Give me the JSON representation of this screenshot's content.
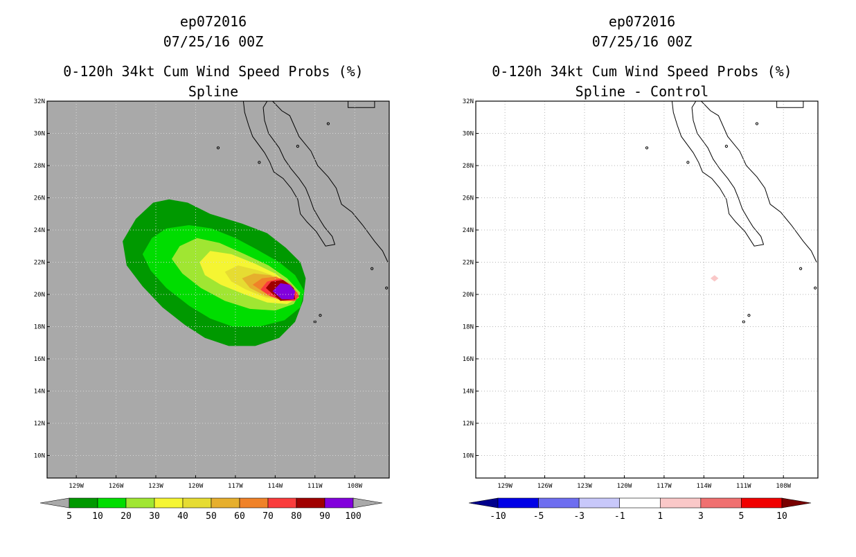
{
  "chart_data": [
    {
      "type": "heatmap",
      "storm_id": "ep072016",
      "date": "07/25/16 00Z",
      "title": "0-120h 34kt Cum Wind Speed Probs (%)",
      "subtitle": "Spline",
      "xlabel": "",
      "ylabel": "",
      "xlim": [
        -131.2,
        -105.4
      ],
      "ylim": [
        8.6,
        32
      ],
      "grid": true,
      "x_ticks": [
        -129,
        -126,
        -123,
        -120,
        -117,
        -114,
        -111,
        -108
      ],
      "x_tick_labels": [
        "129W",
        "126W",
        "123W",
        "120W",
        "117W",
        "114W",
        "111W",
        "108W"
      ],
      "y_ticks": [
        10,
        12,
        14,
        16,
        18,
        20,
        22,
        24,
        26,
        28,
        30,
        32
      ],
      "y_tick_labels": [
        "10N",
        "12N",
        "14N",
        "16N",
        "18N",
        "20N",
        "22N",
        "24N",
        "26N",
        "28N",
        "30N",
        "32N"
      ],
      "background_color": "#a9a9a9",
      "colorbar": {
        "labels": [
          "5",
          "10",
          "20",
          "30",
          "40",
          "50",
          "60",
          "70",
          "80",
          "90",
          "100"
        ],
        "colors": [
          "#009900",
          "#00dd00",
          "#a0e632",
          "#f5f532",
          "#e6dc32",
          "#e6af2d",
          "#f08228",
          "#fa3c3c",
          "#a00000",
          "#8200dc"
        ],
        "under_color": "#a9a9a9",
        "over_color": "#a9a9a9"
      },
      "contours": [
        {
          "level": 5,
          "color": "#009900",
          "points": [
            [
              -125.5,
              23.3
            ],
            [
              -124.5,
              24.7
            ],
            [
              -123.2,
              25.7
            ],
            [
              -122,
              25.9
            ],
            [
              -120.6,
              25.7
            ],
            [
              -118.9,
              25
            ],
            [
              -116.5,
              24.4
            ],
            [
              -114.6,
              23.8
            ],
            [
              -113.2,
              22.9
            ],
            [
              -112.1,
              22
            ],
            [
              -111.7,
              21
            ],
            [
              -111.9,
              19.6
            ],
            [
              -112.5,
              18.3
            ],
            [
              -113.7,
              17.3
            ],
            [
              -115.5,
              16.8
            ],
            [
              -117.5,
              16.8
            ],
            [
              -119.3,
              17.3
            ],
            [
              -120.8,
              18.1
            ],
            [
              -122.5,
              19.2
            ],
            [
              -124,
              20.5
            ],
            [
              -125.2,
              21.8
            ]
          ]
        },
        {
          "level": 10,
          "color": "#00dd00",
          "points": [
            [
              -124,
              22.5
            ],
            [
              -123.3,
              23.5
            ],
            [
              -122.2,
              24.1
            ],
            [
              -120.5,
              24.3
            ],
            [
              -118.8,
              24.1
            ],
            [
              -117,
              23.5
            ],
            [
              -115.4,
              22.8
            ],
            [
              -113.7,
              22
            ],
            [
              -112.5,
              21.2
            ],
            [
              -111.8,
              20.2
            ],
            [
              -112.1,
              19.2
            ],
            [
              -113.3,
              18.4
            ],
            [
              -115.2,
              18
            ],
            [
              -117.2,
              18
            ],
            [
              -118.9,
              18.5
            ],
            [
              -120.5,
              19.3
            ],
            [
              -122.2,
              20.4
            ],
            [
              -123.4,
              21.5
            ]
          ]
        },
        {
          "level": 20,
          "color": "#a0e632",
          "points": [
            [
              -121.8,
              22.2
            ],
            [
              -121.2,
              23
            ],
            [
              -119.9,
              23.5
            ],
            [
              -118.2,
              23.2
            ],
            [
              -116.3,
              22.5
            ],
            [
              -114.5,
              21.8
            ],
            [
              -113.1,
              21
            ],
            [
              -112.1,
              20.1
            ],
            [
              -112.6,
              19.4
            ],
            [
              -114,
              19
            ],
            [
              -115.9,
              19.1
            ],
            [
              -117.8,
              19.6
            ],
            [
              -119.6,
              20.4
            ],
            [
              -121,
              21.3
            ]
          ]
        },
        {
          "level": 30,
          "color": "#f5f532",
          "points": [
            [
              -119.7,
              22
            ],
            [
              -118.9,
              22.7
            ],
            [
              -117.3,
              22.5
            ],
            [
              -115.5,
              21.9
            ],
            [
              -114,
              21.3
            ],
            [
              -112.9,
              20.6
            ],
            [
              -112.2,
              19.8
            ],
            [
              -113.1,
              19.4
            ],
            [
              -114.6,
              19.5
            ],
            [
              -116.3,
              20
            ],
            [
              -118.1,
              20.6
            ],
            [
              -119.3,
              21.2
            ]
          ]
        },
        {
          "level": 40,
          "color": "#e6dc32",
          "points": [
            [
              -117.8,
              21.4
            ],
            [
              -116.8,
              21.8
            ],
            [
              -115.3,
              21.5
            ],
            [
              -113.9,
              21.1
            ],
            [
              -112.9,
              20.6
            ],
            [
              -112.2,
              19.8
            ],
            [
              -113.2,
              19.6
            ],
            [
              -114.7,
              19.8
            ],
            [
              -116.2,
              20.3
            ],
            [
              -117.3,
              20.8
            ]
          ]
        },
        {
          "level": 50,
          "color": "#e6af2d",
          "points": [
            [
              -116.5,
              21
            ],
            [
              -115.6,
              21.3
            ],
            [
              -114.4,
              21.2
            ],
            [
              -113.4,
              20.8
            ],
            [
              -112.5,
              20.2
            ],
            [
              -112.2,
              19.8
            ],
            [
              -113.3,
              19.7
            ],
            [
              -114.7,
              19.9
            ],
            [
              -115.9,
              20.4
            ]
          ]
        },
        {
          "level": 60,
          "color": "#f08228",
          "points": [
            [
              -115.7,
              20.6
            ],
            [
              -115,
              21
            ],
            [
              -113.9,
              21.1
            ],
            [
              -113.1,
              20.7
            ],
            [
              -112.3,
              20.1
            ],
            [
              -112.3,
              19.8
            ],
            [
              -113.4,
              19.7
            ],
            [
              -114.6,
              20
            ]
          ]
        },
        {
          "level": 70,
          "color": "#fa3c3c",
          "points": [
            [
              -115.1,
              20.3
            ],
            [
              -114.6,
              20.8
            ],
            [
              -113.6,
              21
            ],
            [
              -112.8,
              20.6
            ],
            [
              -112.2,
              19.9
            ],
            [
              -112.5,
              19.6
            ],
            [
              -113.4,
              19.6
            ],
            [
              -114.4,
              19.9
            ]
          ]
        },
        {
          "level": 80,
          "color": "#a00000",
          "points": [
            [
              -114.7,
              20.4
            ],
            [
              -114.3,
              20.8
            ],
            [
              -113.4,
              20.9
            ],
            [
              -112.6,
              20.4
            ],
            [
              -112.5,
              19.7
            ],
            [
              -113.6,
              19.6
            ]
          ]
        },
        {
          "level": 90,
          "color": "#8200dc",
          "points": [
            [
              -114.2,
              20.2
            ],
            [
              -113.6,
              20.7
            ],
            [
              -112.9,
              20.6
            ],
            [
              -112.5,
              20.2
            ],
            [
              -112.6,
              19.7
            ],
            [
              -113.5,
              19.7
            ]
          ]
        }
      ]
    },
    {
      "type": "heatmap",
      "storm_id": "ep072016",
      "date": "07/25/16 00Z",
      "title": "0-120h 34kt Cum Wind Speed Probs (%)",
      "subtitle": "Spline - Control",
      "xlabel": "",
      "ylabel": "",
      "xlim": [
        -131.2,
        -105.4
      ],
      "ylim": [
        8.6,
        32
      ],
      "grid": true,
      "x_ticks": [
        -129,
        -126,
        -123,
        -120,
        -117,
        -114,
        -111,
        -108
      ],
      "x_tick_labels": [
        "129W",
        "126W",
        "123W",
        "120W",
        "117W",
        "114W",
        "111W",
        "108W"
      ],
      "y_ticks": [
        10,
        12,
        14,
        16,
        18,
        20,
        22,
        24,
        26,
        28,
        30,
        32
      ],
      "y_tick_labels": [
        "10N",
        "12N",
        "14N",
        "16N",
        "18N",
        "20N",
        "22N",
        "24N",
        "26N",
        "28N",
        "30N",
        "32N"
      ],
      "background_color": "#ffffff",
      "colorbar": {
        "labels": [
          "-10",
          "-5",
          "-3",
          "-1",
          "1",
          "3",
          "5",
          "10"
        ],
        "colors": [
          "#0000e6",
          "#6e6ef0",
          "#c8c8fa",
          "#ffffff",
          "#fac8c8",
          "#f07070",
          "#f00000"
        ],
        "under_color": "#00008c",
        "over_color": "#780000"
      },
      "contours": [
        {
          "level": 1,
          "color": "#fac8c8",
          "points": [
            [
              -113.2,
              21.2
            ],
            [
              -112.9,
              21
            ],
            [
              -113.2,
              20.8
            ],
            [
              -113.5,
              21
            ]
          ]
        }
      ]
    }
  ]
}
